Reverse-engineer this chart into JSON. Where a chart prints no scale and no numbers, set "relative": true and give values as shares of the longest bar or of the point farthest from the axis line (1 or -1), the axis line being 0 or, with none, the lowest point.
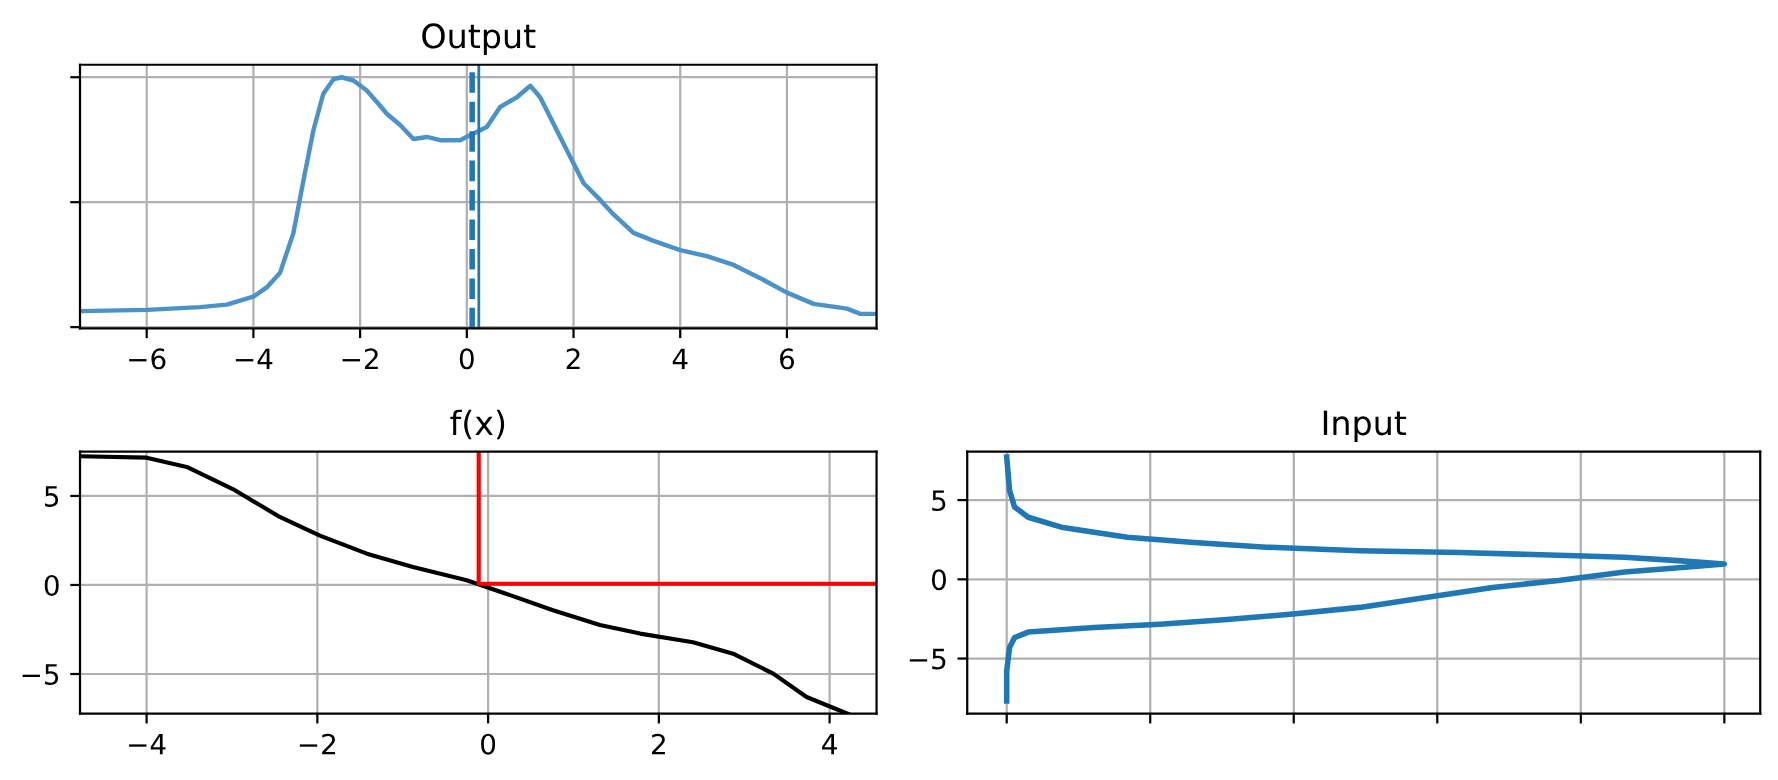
{
  "chart_data": [
    {
      "type": "line",
      "title": "Output",
      "relative": true,
      "tick_labels": "x",
      "grid": true,
      "xlim": [
        -7.25,
        7.68
      ],
      "xticks": [
        {
          "value": -6,
          "label": "−6"
        },
        {
          "value": -4,
          "label": "−4"
        },
        {
          "value": -2,
          "label": "−2"
        },
        0,
        2,
        4,
        6
      ],
      "series": [
        {
          "color": "#4a92c7",
          "x": [
            -7.25,
            -6,
            -5,
            -4.5,
            -4,
            -3.75,
            -3.5,
            -3.25,
            -3.06,
            -2.875,
            -2.69,
            -2.5,
            -2.35,
            -2.125,
            -1.875,
            -1.625,
            -1.5,
            -1.25,
            -1.0,
            -0.75,
            -0.5,
            -0.125,
            0.125,
            0.375,
            0.625,
            0.94,
            1.19,
            1.375,
            1.625,
            1.875,
            2.19,
            2.5,
            2.75,
            3.125,
            3.5,
            4.0,
            4.5,
            5.0,
            5.5,
            6.0,
            6.5,
            7.125,
            7.375,
            7.68
          ],
          "values": [
            0.064,
            0.069,
            0.08,
            0.09,
            0.122,
            0.159,
            0.218,
            0.377,
            0.589,
            0.788,
            0.934,
            0.992,
            1.0,
            0.987,
            0.947,
            0.886,
            0.854,
            0.809,
            0.753,
            0.761,
            0.748,
            0.748,
            0.775,
            0.801,
            0.881,
            0.92,
            0.966,
            0.92,
            0.814,
            0.708,
            0.576,
            0.509,
            0.451,
            0.377,
            0.345,
            0.308,
            0.284,
            0.249,
            0.196,
            0.138,
            0.093,
            0.074,
            0.053,
            0.053
          ]
        }
      ],
      "ref_lines": [
        {
          "axis": "x",
          "value": 0.1,
          "color": "#1f77b4",
          "line_style": "dashed"
        },
        {
          "axis": "x",
          "value": 0.225,
          "color": "#1f77b4",
          "line_style": "solid"
        }
      ]
    },
    {
      "type": "line",
      "title": "f(x)",
      "grid": true,
      "xlim": [
        -4.78,
        4.55
      ],
      "ylim": [
        -7.23,
        7.49
      ],
      "xticks": [
        {
          "value": -4,
          "label": "−4"
        },
        {
          "value": -2,
          "label": "−2"
        },
        0,
        2,
        4
      ],
      "yticks": [
        {
          "value": -5,
          "label": "−5"
        },
        0,
        5
      ],
      "series": [
        {
          "color": "#000000",
          "x": [
            -4.78,
            -4,
            -3.53,
            -2.99,
            -2.44,
            -1.97,
            -1.42,
            -0.88,
            -0.25,
            0.21,
            0.76,
            1.31,
            1.78,
            2.4,
            2.87,
            3.34,
            3.73,
            4.21
          ],
          "values": [
            7.23,
            7.15,
            6.63,
            5.39,
            3.82,
            2.77,
            1.76,
            1.01,
            0.26,
            -0.49,
            -1.42,
            -2.25,
            -2.73,
            -3.22,
            -3.86,
            -4.98,
            -6.29,
            -7.23
          ]
        },
        {
          "color": "#ff0000",
          "x": [
            -0.11,
            -0.11,
            4.55
          ],
          "values": [
            7.49,
            0.07,
            0.07
          ]
        }
      ]
    },
    {
      "type": "line",
      "title": "Input",
      "orientation": "horizontal",
      "relative": true,
      "tick_labels": "y",
      "grid": true,
      "ylim": [
        -8.48,
        8.06
      ],
      "yticks": [
        {
          "value": -5,
          "label": "−5"
        },
        0,
        5
      ],
      "series": [
        {
          "color": "#1f77b4",
          "x": [
            7.72,
            5.61,
            4.56,
            3.92,
            3.29,
            2.66,
            2.32,
            2.03,
            1.81,
            1.69,
            1.52,
            1.39,
            1.18,
            0.97,
            0.76,
            0.46,
            -0.08,
            -0.51,
            -1.14,
            -1.77,
            -2.19,
            -2.53,
            -2.83,
            -3.04,
            -3.33,
            -3.67,
            -4.3,
            -5.78,
            -7.68
          ],
          "values": [
            0,
            0.004,
            0.011,
            0.03,
            0.076,
            0.168,
            0.261,
            0.362,
            0.492,
            0.63,
            0.769,
            0.861,
            0.935,
            1.0,
            0.945,
            0.861,
            0.769,
            0.677,
            0.584,
            0.492,
            0.399,
            0.307,
            0.214,
            0.122,
            0.03,
            0.011,
            0.004,
            0,
            0
          ]
        }
      ]
    }
  ]
}
